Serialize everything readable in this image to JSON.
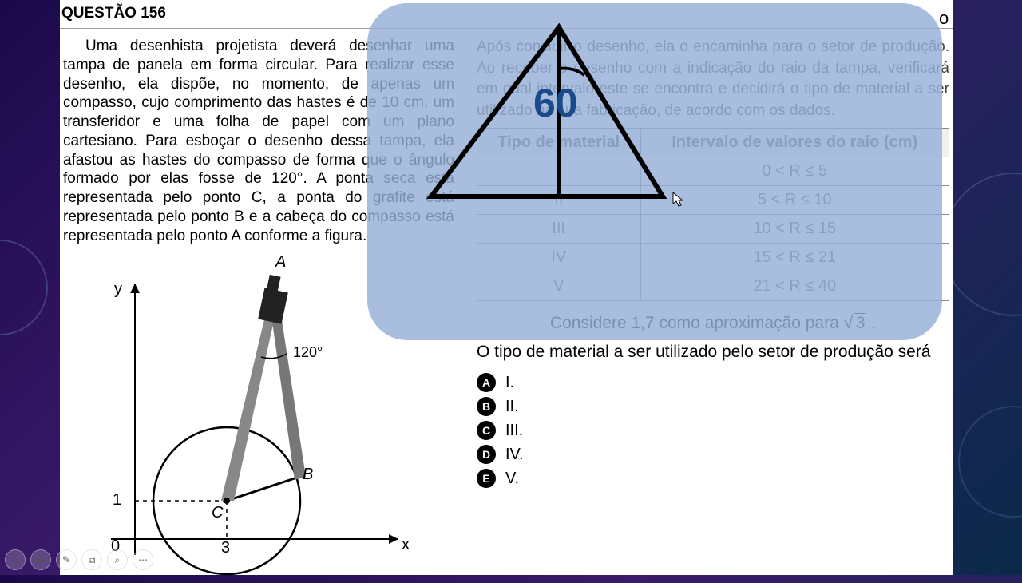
{
  "header": "QUESTÃO 156",
  "left_paragraph": "Uma desenhista projetista deverá desenhar uma tampa de panela em forma circular. Para realizar esse desenho, ela dispõe, no momento, de apenas um compasso, cujo comprimento das hastes é de 10 cm, um transferidor e uma folha de papel com um plano cartesiano. Para esboçar o desenho dessa tampa, ela afastou as hastes do compasso de forma que o ângulo formado por elas fosse de 120°. A ponta seca está representada pelo ponto C, a ponta do grafite está representada pelo ponto B e a cabeça do compasso está representada pelo ponto A conforme a figura.",
  "right_top": "Após concluir o desenho, ela o encaminha para o setor de produção. Ao receber o desenho com a indicação do raio da tampa, verificará em qual intervalo este se encontra e decidirá o tipo de material a ser utilizado na sua fabricação, de acordo com os dados.",
  "table": {
    "headers": [
      "Tipo de material",
      "Intervalo de valores do raio (cm)"
    ],
    "rows": [
      [
        "I",
        "0 < R ≤ 5"
      ],
      [
        "II",
        "5 < R ≤ 10"
      ],
      [
        "III",
        "10 < R ≤ 15"
      ],
      [
        "IV",
        "15 < R ≤ 21"
      ],
      [
        "V",
        "21 < R ≤ 40"
      ]
    ]
  },
  "consider_pre": "Considere 1,7 como aproximação para ",
  "consider_root": "3",
  "consider_post": " .",
  "question": "O tipo de material a ser utilizado pelo setor de produção será",
  "options": [
    {
      "letter": "A",
      "text": "I."
    },
    {
      "letter": "B",
      "text": "II."
    },
    {
      "letter": "C",
      "text": "III."
    },
    {
      "letter": "D",
      "text": "IV."
    },
    {
      "letter": "E",
      "text": "V."
    }
  ],
  "figure": {
    "labels": {
      "A": "A",
      "B": "B",
      "C": "C",
      "angle": "120°",
      "y": "y",
      "x": "x",
      "zero": "0",
      "one": "1",
      "three": "3"
    }
  },
  "overlay": {
    "angle_label": "60"
  },
  "o_text": "o"
}
